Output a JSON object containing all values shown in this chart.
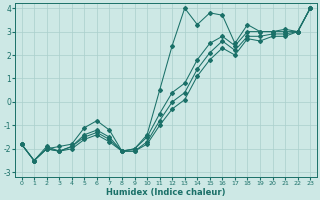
{
  "xlabel": "Humidex (Indice chaleur)",
  "xlim": [
    -0.5,
    23.5
  ],
  "ylim": [
    -3.2,
    4.2
  ],
  "xticks": [
    0,
    1,
    2,
    3,
    4,
    5,
    6,
    7,
    8,
    9,
    10,
    11,
    12,
    13,
    14,
    15,
    16,
    17,
    18,
    19,
    20,
    21,
    22,
    23
  ],
  "yticks": [
    -3,
    -2,
    -1,
    0,
    1,
    2,
    3,
    4
  ],
  "bg_color": "#cde8e5",
  "grid_color": "#aacfcc",
  "line_color": "#1a7068",
  "jagged_x": [
    0,
    1,
    2,
    3,
    4,
    5,
    6,
    7,
    8,
    9,
    10,
    11,
    12,
    13,
    14,
    15,
    16,
    17,
    18,
    19,
    20,
    21,
    22,
    23
  ],
  "jagged_y": [
    -1.8,
    -2.5,
    -2.0,
    -1.9,
    -1.8,
    -1.1,
    -0.8,
    -1.2,
    -2.1,
    -2.0,
    -1.4,
    0.5,
    2.4,
    4.0,
    3.3,
    3.8,
    3.7,
    2.5,
    3.3,
    3.0,
    3.0,
    3.1,
    3.0,
    4.0
  ],
  "linear1_x": [
    0,
    1,
    2,
    3,
    4,
    5,
    6,
    7,
    8,
    9,
    10,
    11,
    12,
    13,
    14,
    15,
    16,
    17,
    18,
    19,
    20,
    21,
    22,
    23
  ],
  "linear1_y": [
    -1.8,
    -2.5,
    -1.9,
    -2.1,
    -1.9,
    -1.4,
    -1.2,
    -1.5,
    -2.1,
    -2.0,
    -1.5,
    -0.5,
    0.4,
    0.8,
    1.8,
    2.5,
    2.8,
    2.4,
    3.0,
    3.0,
    3.0,
    3.0,
    3.0,
    4.0
  ],
  "linear2_x": [
    0,
    1,
    2,
    3,
    4,
    5,
    6,
    7,
    8,
    9,
    10,
    11,
    12,
    13,
    14,
    15,
    16,
    17,
    18,
    19,
    20,
    21,
    22,
    23
  ],
  "linear2_y": [
    -1.8,
    -2.5,
    -2.0,
    -2.1,
    -1.9,
    -1.5,
    -1.3,
    -1.6,
    -2.1,
    -2.1,
    -1.7,
    -0.8,
    0.0,
    0.4,
    1.4,
    2.1,
    2.6,
    2.2,
    2.8,
    2.8,
    2.9,
    2.9,
    3.0,
    4.0
  ],
  "linear3_x": [
    0,
    1,
    2,
    3,
    4,
    5,
    6,
    7,
    8,
    9,
    10,
    11,
    12,
    13,
    14,
    15,
    16,
    17,
    18,
    19,
    20,
    21,
    22,
    23
  ],
  "linear3_y": [
    -1.8,
    -2.5,
    -2.0,
    -2.1,
    -2.0,
    -1.6,
    -1.4,
    -1.7,
    -2.1,
    -2.1,
    -1.8,
    -1.0,
    -0.3,
    0.1,
    1.1,
    1.8,
    2.3,
    2.0,
    2.7,
    2.6,
    2.8,
    2.8,
    3.0,
    4.0
  ]
}
